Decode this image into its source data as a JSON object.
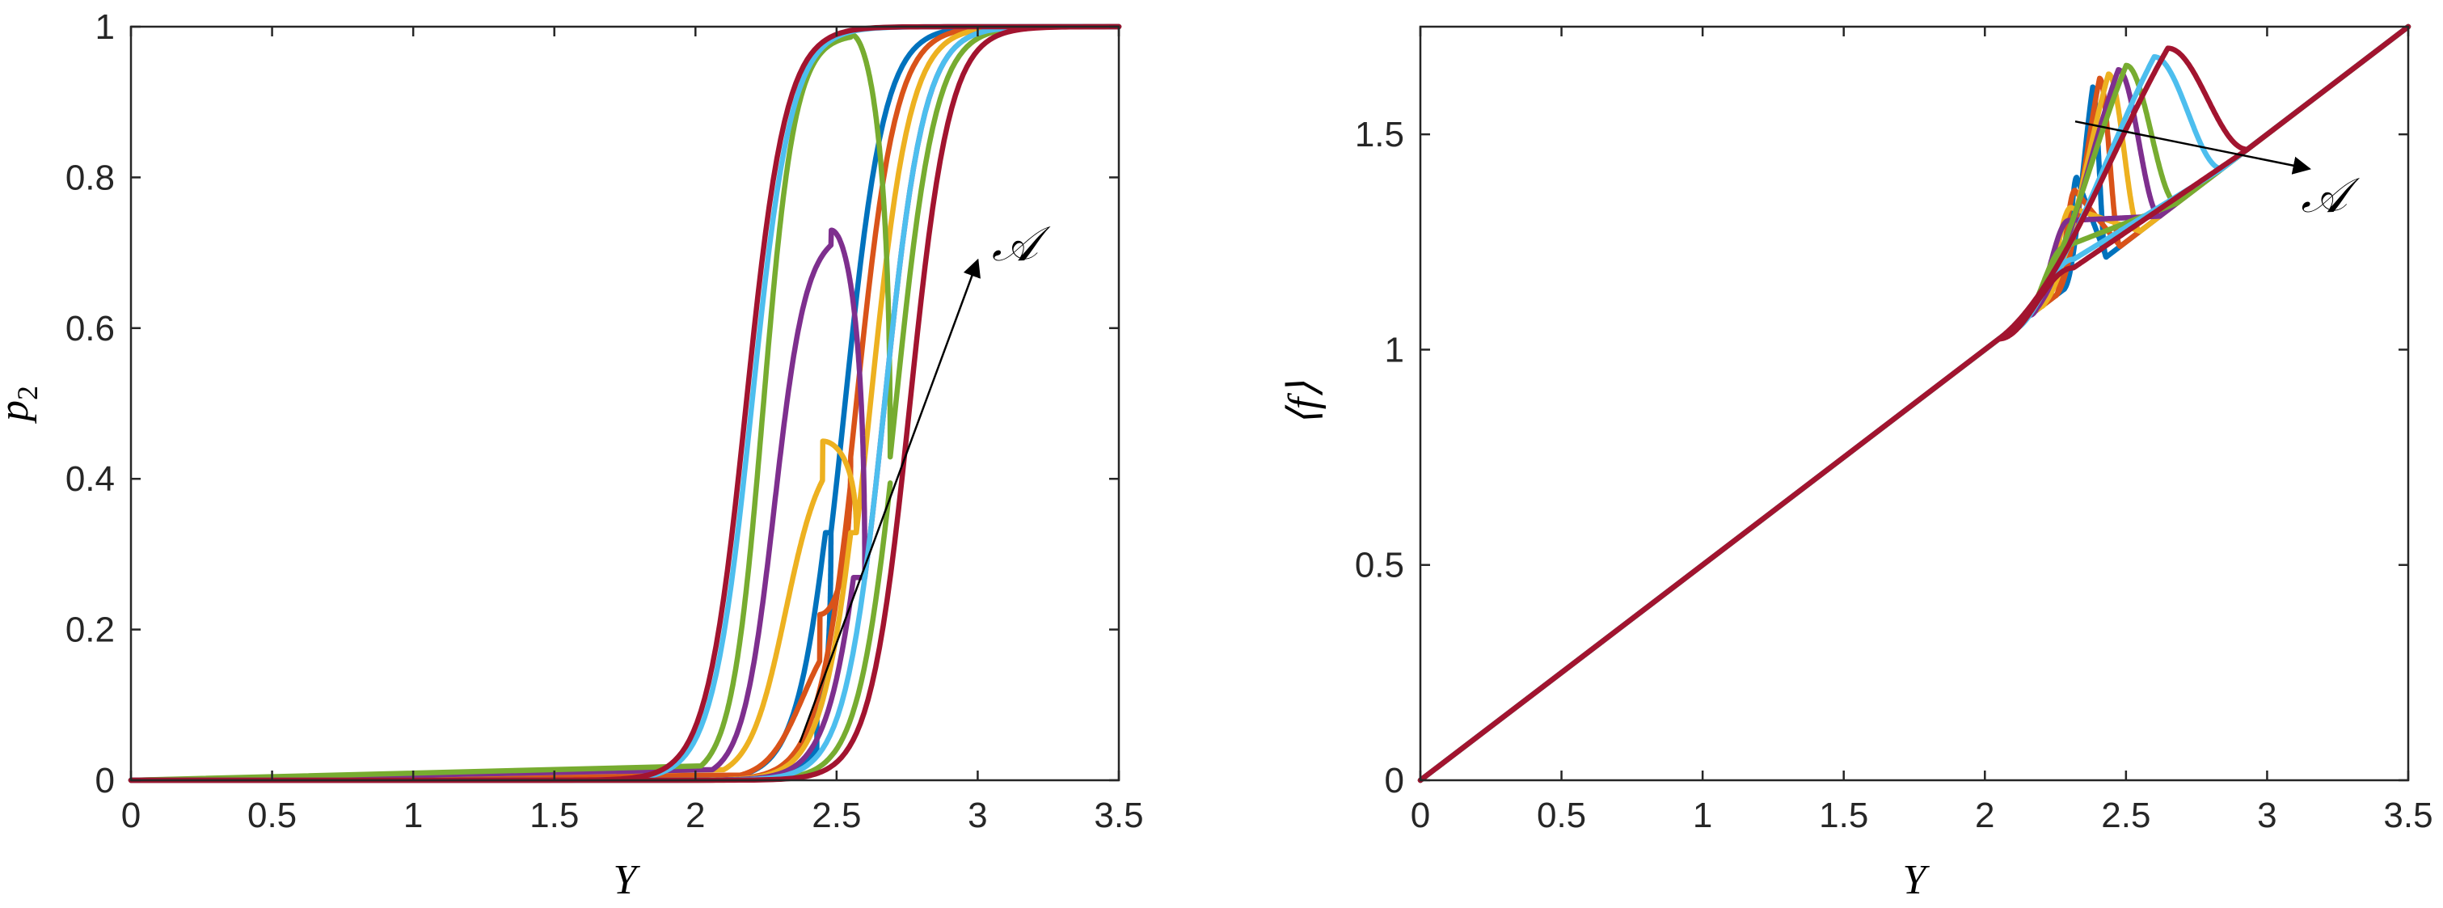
{
  "colors": {
    "blue": "#0072BD",
    "orange": "#D95319",
    "yellow": "#EDB120",
    "purple": "#7E2F8E",
    "green": "#77AC30",
    "light_blue": "#4DBEEE",
    "red": "#A2142F",
    "axis": "#262626"
  },
  "chart_data": [
    {
      "type": "line",
      "xlabel": "Y",
      "ylabel_base": "p",
      "ylabel_sub": "2",
      "xlim": [
        0,
        3.5
      ],
      "ylim": [
        0,
        1
      ],
      "xticks": [
        "0",
        "0.5",
        "1",
        "1.5",
        "2",
        "2.5",
        "3",
        "3.5"
      ],
      "yticks": [
        "0",
        "0.2",
        "0.4",
        "0.6",
        "0.8",
        "1"
      ],
      "grid": false,
      "annotation": {
        "text": "𝒜",
        "arrow_from": [
          2.37,
          0.05
        ],
        "arrow_to": [
          3.0,
          0.69
        ],
        "text_at": [
          3.05,
          0.69
        ]
      },
      "series": [
        {
          "color": "blue",
          "lower": {
            "x0": 2.42,
            "w": 0.07,
            "xr": 2.48
          },
          "upper": {
            "x0": 2.53,
            "w": 0.07,
            "xr": 2.48
          },
          "peak": 0.09,
          "peak_x": 2.43
        },
        {
          "color": "orange",
          "lower": {
            "x0": 2.36,
            "w": 0.08,
            "xr": 2.55
          },
          "upper": {
            "x0": 2.57,
            "w": 0.07,
            "xr": 2.55
          },
          "peak": 0.22,
          "peak_x": 2.44
        },
        {
          "color": "yellow",
          "lower": {
            "x0": 2.3,
            "w": 0.08,
            "xr": 2.57
          },
          "upper": {
            "x0": 2.62,
            "w": 0.07,
            "xr": 2.57
          },
          "peak": 0.45,
          "peak_x": 2.45
        },
        {
          "color": "purple",
          "lower": {
            "x0": 2.26,
            "w": 0.07,
            "xr": 2.6
          },
          "upper": {
            "x0": 2.67,
            "w": 0.07,
            "xr": 2.6
          },
          "peak": 0.73,
          "peak_x": 2.48
        },
        {
          "color": "green",
          "lower": {
            "x0": 2.22,
            "w": 0.07,
            "xr": 2.69
          },
          "upper": {
            "x0": 2.71,
            "w": 0.07,
            "xr": 2.69
          },
          "peak": 0.99,
          "peak_x": 2.55
        },
        {
          "color": "light_blue",
          "lower": {
            "x0": 2.2,
            "w": 0.07,
            "xr": null
          },
          "upper": {
            "x0": 2.67,
            "w": 0.07,
            "xr": null
          },
          "peak": 1.0,
          "peak_x": null
        },
        {
          "color": "red",
          "lower": {
            "x0": 2.18,
            "w": 0.07,
            "xr": null
          },
          "upper": {
            "x0": 2.76,
            "w": 0.07,
            "xr": null
          },
          "peak": 1.0,
          "peak_x": null
        }
      ]
    },
    {
      "type": "line",
      "xlabel": "Y",
      "ylabel": "⟨f⟩",
      "xlim": [
        0,
        3.5
      ],
      "ylim": [
        0,
        1.75
      ],
      "xticks": [
        "0",
        "0.5",
        "1",
        "1.5",
        "2",
        "2.5",
        "3",
        "3.5"
      ],
      "yticks": [
        "0",
        "0.5",
        "1",
        "1.5"
      ],
      "grid": false,
      "annotation": {
        "text": "𝒜",
        "arrow_from": [
          2.32,
          1.53
        ],
        "arrow_to": [
          3.15,
          1.42
        ],
        "text_at": [
          3.12,
          1.32
        ]
      },
      "series": [
        {
          "color": "blue",
          "x_start": 2.28,
          "x_end": 2.43,
          "top": 1.61,
          "bottom": 1.4
        },
        {
          "color": "orange",
          "x_start": 2.25,
          "x_end": 2.48,
          "top": 1.63,
          "bottom": 1.37
        },
        {
          "color": "yellow",
          "x_start": 2.2,
          "x_end": 2.55,
          "top": 1.64,
          "bottom": 1.33
        },
        {
          "color": "purple",
          "x_start": 2.16,
          "x_end": 2.62,
          "top": 1.65,
          "bottom": 1.3
        },
        {
          "color": "green",
          "x_start": 2.12,
          "x_end": 2.68,
          "top": 1.66,
          "bottom": 1.24
        },
        {
          "color": "light_blue",
          "x_start": 2.09,
          "x_end": 2.84,
          "top": 1.68,
          "bottom": 1.21
        },
        {
          "color": "red",
          "x_start": 2.05,
          "x_end": 2.93,
          "top": 1.7,
          "bottom": 1.19
        }
      ]
    }
  ]
}
